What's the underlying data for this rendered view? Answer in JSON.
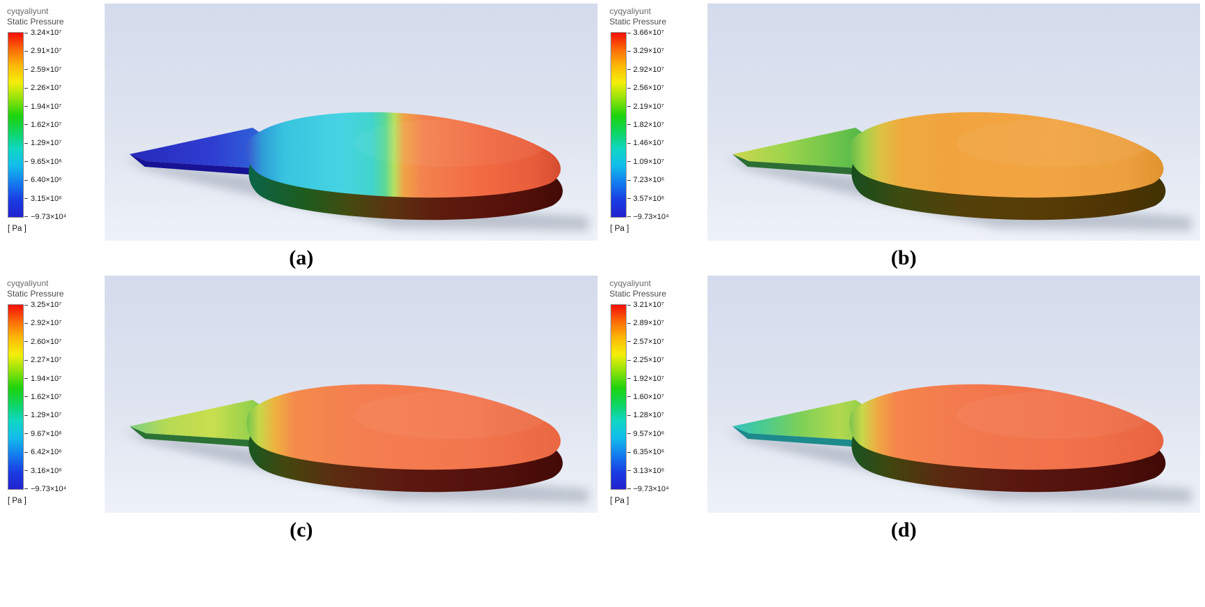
{
  "figure": {
    "description_note": "Static pressure contour results, four cases"
  },
  "scene": {
    "background_gradient": [
      {
        "o": 0,
        "c": "#d4dbec"
      },
      {
        "o": 0.55,
        "c": "#dfe4f0"
      },
      {
        "o": 1,
        "c": "#eef2f8"
      }
    ],
    "shadow_color": "#8e96a6"
  },
  "colorbar": {
    "stops": [
      {
        "o": 0,
        "c": "#f50d06"
      },
      {
        "o": 0.09,
        "c": "#fb6b07"
      },
      {
        "o": 0.18,
        "c": "#fcb908"
      },
      {
        "o": 0.27,
        "c": "#f4ef09"
      },
      {
        "o": 0.36,
        "c": "#8fe20b"
      },
      {
        "o": 0.45,
        "c": "#1ed30d"
      },
      {
        "o": 0.54,
        "c": "#0fd562"
      },
      {
        "o": 0.63,
        "c": "#10d7c3"
      },
      {
        "o": 0.72,
        "c": "#12bdec"
      },
      {
        "o": 0.82,
        "c": "#1478ee"
      },
      {
        "o": 0.91,
        "c": "#1a3be2"
      },
      {
        "o": 1,
        "c": "#2323cf"
      }
    ]
  },
  "panels": [
    {
      "caption": "(a)",
      "legend": {
        "title": "cyqyaliyunt",
        "subtitle": "Static Pressure",
        "unit": "[ Pa ]",
        "ticks": [
          "3.24×10⁷",
          "2.91×10⁷",
          "2.59×10⁷",
          "2.26×10⁷",
          "1.94×10⁷",
          "1.62×10⁷",
          "1.29×10⁷",
          "9.65×10⁶",
          "6.40×10⁶",
          "3.15×10⁶",
          "−9.73×10⁴"
        ]
      },
      "colors": {
        "tail_top": [
          {
            "o": 0,
            "c": "#2629b8"
          },
          {
            "o": 0.55,
            "c": "#2f3ed2"
          },
          {
            "o": 0.85,
            "c": "#2f63d8"
          },
          {
            "o": 1,
            "c": "#2f9ed0"
          }
        ],
        "tail_side": "#171394",
        "body_top": [
          {
            "o": 0,
            "c": "#3a56d0"
          },
          {
            "o": 0.05,
            "c": "#2f9cd8"
          },
          {
            "o": 0.12,
            "c": "#38c4de"
          },
          {
            "o": 0.3,
            "c": "#46d4e4"
          },
          {
            "o": 0.4,
            "c": "#42d4cc"
          },
          {
            "o": 0.44,
            "c": "#5ad896"
          },
          {
            "o": 0.47,
            "c": "#b6e060"
          },
          {
            "o": 0.5,
            "c": "#f0a446"
          },
          {
            "o": 0.56,
            "c": "#f3824e"
          },
          {
            "o": 0.75,
            "c": "#f26a42"
          },
          {
            "o": 0.92,
            "c": "#e85c3a"
          },
          {
            "o": 1,
            "c": "#d44c30"
          }
        ],
        "body_side": [
          {
            "o": 0,
            "c": "#0b6448"
          },
          {
            "o": 0.18,
            "c": "#1e5c1e"
          },
          {
            "o": 0.32,
            "c": "#444a10"
          },
          {
            "o": 0.45,
            "c": "#5c3310"
          },
          {
            "o": 0.6,
            "c": "#5e1c0e"
          },
          {
            "o": 0.85,
            "c": "#54100a"
          },
          {
            "o": 1,
            "c": "#430b06"
          }
        ]
      }
    },
    {
      "caption": "(b)",
      "legend": {
        "title": "cyqyaliyunt",
        "subtitle": "Static Pressure",
        "unit": "[ Pa ]",
        "ticks": [
          "3.66×10⁷",
          "3.29×10⁷",
          "2.92×10⁷",
          "2.56×10⁷",
          "2.19×10⁷",
          "1.82×10⁷",
          "1.46×10⁷",
          "1.09×10⁷",
          "7.23×10⁶",
          "3.57×10⁶",
          "−9.73×10⁴"
        ]
      },
      "colors": {
        "tail_top": [
          {
            "o": 0,
            "c": "#ccd84e"
          },
          {
            "o": 0.35,
            "c": "#9cd44c"
          },
          {
            "o": 0.75,
            "c": "#62c04a"
          },
          {
            "o": 1,
            "c": "#3ea84a"
          }
        ],
        "tail_side": "#2c6e34",
        "body_top": [
          {
            "o": 0,
            "c": "#62bc4a"
          },
          {
            "o": 0.05,
            "c": "#a8d04a"
          },
          {
            "o": 0.1,
            "c": "#ddc243"
          },
          {
            "o": 0.16,
            "c": "#eeab3e"
          },
          {
            "o": 0.3,
            "c": "#f1a43e"
          },
          {
            "o": 0.65,
            "c": "#f2a442"
          },
          {
            "o": 0.88,
            "c": "#eda03e"
          },
          {
            "o": 1,
            "c": "#e0942f"
          }
        ],
        "body_side": [
          {
            "o": 0,
            "c": "#174e1e"
          },
          {
            "o": 0.15,
            "c": "#3c4a10"
          },
          {
            "o": 0.35,
            "c": "#54400a"
          },
          {
            "o": 0.6,
            "c": "#583c06"
          },
          {
            "o": 0.85,
            "c": "#4e3404"
          },
          {
            "o": 1,
            "c": "#403202"
          }
        ]
      }
    },
    {
      "caption": "(c)",
      "legend": {
        "title": "cyqyaliyunt",
        "subtitle": "Static Pressure",
        "unit": "[ Pa ]",
        "ticks": [
          "3.25×10⁷",
          "2.92×10⁷",
          "2.60×10⁷",
          "2.27×10⁷",
          "1.94×10⁷",
          "1.62×10⁷",
          "1.29×10⁷",
          "9.67×10⁶",
          "6.42×10⁶",
          "3.16×10⁶",
          "−9.73×10⁴"
        ]
      },
      "colors": {
        "tail_top": [
          {
            "o": 0,
            "c": "#7ecf86"
          },
          {
            "o": 0.25,
            "c": "#b6da52"
          },
          {
            "o": 0.55,
            "c": "#c9de4e"
          },
          {
            "o": 0.8,
            "c": "#95d04c"
          },
          {
            "o": 1,
            "c": "#68c24a"
          }
        ],
        "tail_side": "#2c7234",
        "body_top": [
          {
            "o": 0,
            "c": "#74c44c"
          },
          {
            "o": 0.04,
            "c": "#c6d84a"
          },
          {
            "o": 0.09,
            "c": "#eeb23f"
          },
          {
            "o": 0.15,
            "c": "#f48b4c"
          },
          {
            "o": 0.35,
            "c": "#f47e50"
          },
          {
            "o": 0.7,
            "c": "#f3774e"
          },
          {
            "o": 1,
            "c": "#ea6742"
          }
        ],
        "body_side": [
          {
            "o": 0,
            "c": "#1a5822"
          },
          {
            "o": 0.12,
            "c": "#44460e"
          },
          {
            "o": 0.28,
            "c": "#5c2c10"
          },
          {
            "o": 0.5,
            "c": "#5c1810"
          },
          {
            "o": 0.8,
            "c": "#52100c"
          },
          {
            "o": 1,
            "c": "#420a06"
          }
        ]
      }
    },
    {
      "caption": "(d)",
      "legend": {
        "title": "cyqyaliyunt",
        "subtitle": "Static Pressure",
        "unit": "[ Pa ]",
        "ticks": [
          "3.21×10⁷",
          "2.89×10⁷",
          "2.57×10⁷",
          "2.25×10⁷",
          "1.92×10⁷",
          "1.60×10⁷",
          "1.28×10⁷",
          "9.57×10⁶",
          "6.35×10⁶",
          "3.13×10⁶",
          "−9.73×10⁴"
        ]
      },
      "colors": {
        "tail_top": [
          {
            "o": 0,
            "c": "#35c2c0"
          },
          {
            "o": 0.2,
            "c": "#49cb90"
          },
          {
            "o": 0.45,
            "c": "#7ed058"
          },
          {
            "o": 0.7,
            "c": "#b2d84e"
          },
          {
            "o": 1,
            "c": "#74c64c"
          }
        ],
        "tail_side": "#1d8a8c",
        "body_top": [
          {
            "o": 0,
            "c": "#7cc44e"
          },
          {
            "o": 0.04,
            "c": "#c8d84a"
          },
          {
            "o": 0.09,
            "c": "#f0a842"
          },
          {
            "o": 0.15,
            "c": "#f4844c"
          },
          {
            "o": 0.4,
            "c": "#f3784e"
          },
          {
            "o": 0.75,
            "c": "#f17049"
          },
          {
            "o": 1,
            "c": "#e86440"
          }
        ],
        "body_side": [
          {
            "o": 0,
            "c": "#185422"
          },
          {
            "o": 0.12,
            "c": "#40460e"
          },
          {
            "o": 0.28,
            "c": "#5a2a10"
          },
          {
            "o": 0.5,
            "c": "#5a1810"
          },
          {
            "o": 0.8,
            "c": "#500f0b"
          },
          {
            "o": 1,
            "c": "#400a06"
          }
        ]
      }
    }
  ],
  "chart_data": [
    {
      "type": "heatmap",
      "subtype": "cfd-static-pressure-contour",
      "panel": "(a)",
      "title": "cyqyaliyunt",
      "field": "Static Pressure",
      "unit": "Pa",
      "colormap": "rainbow",
      "legend_position": "left",
      "legend_values": [
        32400000,
        29100000,
        25900000,
        22600000,
        19400000,
        16200000,
        12900000,
        9650000,
        6400000,
        3150000,
        -97300
      ]
    },
    {
      "type": "heatmap",
      "subtype": "cfd-static-pressure-contour",
      "panel": "(b)",
      "title": "cyqyaliyunt",
      "field": "Static Pressure",
      "unit": "Pa",
      "colormap": "rainbow",
      "legend_position": "left",
      "legend_values": [
        36600000,
        32900000,
        29200000,
        25600000,
        21900000,
        18200000,
        14600000,
        10900000,
        7230000,
        3570000,
        -97300
      ]
    },
    {
      "type": "heatmap",
      "subtype": "cfd-static-pressure-contour",
      "panel": "(c)",
      "title": "cyqyaliyunt",
      "field": "Static Pressure",
      "unit": "Pa",
      "colormap": "rainbow",
      "legend_position": "left",
      "legend_values": [
        32500000,
        29200000,
        26000000,
        22700000,
        19400000,
        16200000,
        12900000,
        9670000,
        6420000,
        3160000,
        -97300
      ]
    },
    {
      "type": "heatmap",
      "subtype": "cfd-static-pressure-contour",
      "panel": "(d)",
      "title": "cyqyaliyunt",
      "field": "Static Pressure",
      "unit": "Pa",
      "colormap": "rainbow",
      "legend_position": "left",
      "legend_values": [
        32100000,
        28900000,
        25700000,
        22500000,
        19200000,
        16000000,
        12800000,
        9570000,
        6350000,
        3130000,
        -97300
      ]
    }
  ]
}
